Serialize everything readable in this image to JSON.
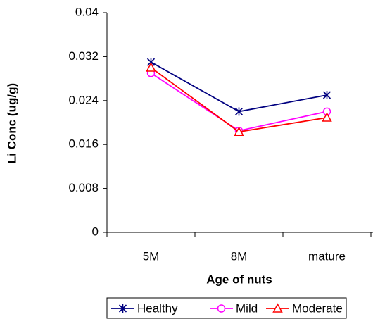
{
  "chart_data": {
    "type": "line",
    "xlabel": "Age of nuts",
    "ylabel": "Li Conc (ug/g)",
    "categories": [
      "5M",
      "8M",
      "mature"
    ],
    "series": [
      {
        "name": "Healthy",
        "color": "#000080",
        "marker": "asterisk",
        "values": [
          0.031,
          0.022,
          0.025
        ]
      },
      {
        "name": "Mild",
        "color": "#ff00ff",
        "marker": "circle",
        "values": [
          0.029,
          0.0185,
          0.022
        ]
      },
      {
        "name": "Moderate",
        "color": "#ff0000",
        "marker": "triangle",
        "values": [
          0.03,
          0.0183,
          0.0209
        ]
      }
    ],
    "ylim": [
      0,
      0.04
    ],
    "yticks": [
      0,
      0.008,
      0.016,
      0.024,
      0.032,
      0.04
    ],
    "grid": false,
    "legend": "bottom"
  }
}
